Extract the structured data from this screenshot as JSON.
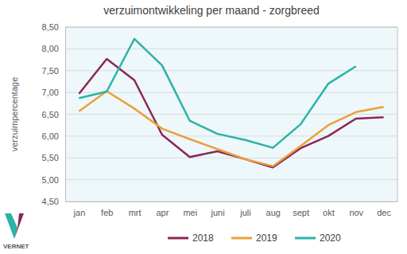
{
  "chart_data": {
    "type": "line",
    "title": "verzuimontwikkeling per maand - zorgbreed",
    "y_label": "verzuimpercentage",
    "annotations": [
      "VERNET"
    ],
    "categories": [
      "jan",
      "feb",
      "mrt",
      "apr",
      "mei",
      "juni",
      "juli",
      "aug",
      "sept",
      "okt",
      "nov",
      "dec"
    ],
    "series": [
      {
        "name": "2018",
        "color": "#8c2657",
        "values": [
          6.97,
          7.77,
          7.28,
          6.03,
          5.52,
          5.65,
          5.47,
          5.28,
          5.72,
          6.0,
          6.4,
          6.43
        ]
      },
      {
        "name": "2019",
        "color": "#e8a13d",
        "values": [
          6.57,
          7.03,
          6.63,
          6.17,
          5.93,
          5.7,
          5.47,
          5.31,
          5.77,
          6.25,
          6.55,
          6.67
        ]
      },
      {
        "name": "2020",
        "color": "#2ab3a6",
        "values": [
          6.87,
          7.02,
          8.23,
          7.62,
          6.35,
          6.05,
          5.91,
          5.73,
          6.27,
          7.2,
          7.6,
          null
        ]
      }
    ],
    "ylim": [
      4.5,
      8.5
    ],
    "yticks": [
      {
        "value": 4.5,
        "label": "4,50"
      },
      {
        "value": 5,
        "label": "5,00"
      },
      {
        "value": 5.5,
        "label": "5,50"
      },
      {
        "value": 6,
        "label": "6,00"
      },
      {
        "value": 6.5,
        "label": "6,50"
      },
      {
        "value": 7,
        "label": "7,00"
      },
      {
        "value": 7.5,
        "label": "7,50"
      },
      {
        "value": 8,
        "label": "8,00"
      },
      {
        "value": 8.5,
        "label": "8,50"
      }
    ],
    "grid": true,
    "legend": "bottom"
  }
}
